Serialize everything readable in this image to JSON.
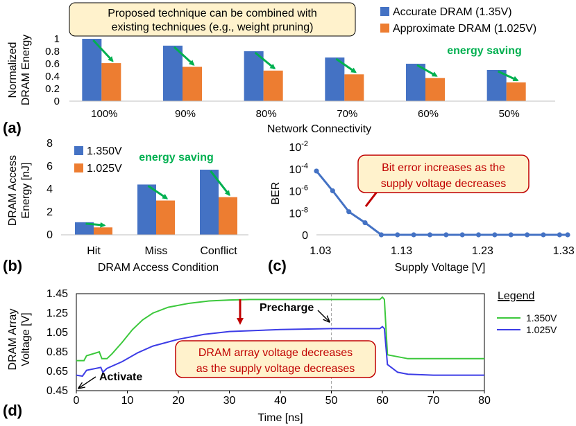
{
  "colors": {
    "blue": "#4472C4",
    "orange": "#ED7D31",
    "green_arrow": "#00B050",
    "green_text": "#00B050",
    "red_arrow": "#C00000",
    "callout_fill": "#FFF2CC",
    "callout_border": "#C00000",
    "line_green": "#3CC83C",
    "line_blue": "#3C3CE6"
  },
  "chart_data": [
    {
      "id": "a",
      "panel_label": "(a)",
      "type": "bar",
      "title_note_lines": [
        "Proposed technique can be combined with",
        "existing techniques (e.g., weight pruning)"
      ],
      "ylabel_lines": [
        "Normalized",
        "DRAM Energy"
      ],
      "xlabel": "Network Connectivity",
      "ylim": [
        0,
        1
      ],
      "yticks": [
        "0",
        "0.2",
        "0.4",
        "0.6",
        "0.8",
        "1"
      ],
      "categories": [
        "100%",
        "90%",
        "80%",
        "70%",
        "60%",
        "50%"
      ],
      "series": [
        {
          "name": "Accurate DRAM (1.35V)",
          "values": [
            1.0,
            0.89,
            0.8,
            0.7,
            0.6,
            0.5
          ]
        },
        {
          "name": "Approximate DRAM (1.025V)",
          "values": [
            0.61,
            0.55,
            0.49,
            0.43,
            0.37,
            0.3
          ]
        }
      ],
      "annotation": "energy saving"
    },
    {
      "id": "b",
      "panel_label": "(b)",
      "type": "bar",
      "ylabel_lines": [
        "DRAM Access",
        "Energy [nJ]"
      ],
      "xlabel": "DRAM Access Condition",
      "ylim": [
        0,
        8
      ],
      "yticks": [
        "0",
        "2",
        "4",
        "6",
        "8"
      ],
      "categories": [
        "Hit",
        "Miss",
        "Conflict"
      ],
      "series": [
        {
          "name": "1.350V",
          "values": [
            1.1,
            4.4,
            5.7
          ]
        },
        {
          "name": "1.025V",
          "values": [
            0.65,
            3.0,
            3.3
          ]
        }
      ],
      "annotation": "energy saving"
    },
    {
      "id": "c",
      "panel_label": "(c)",
      "type": "line",
      "ylabel": "BER",
      "xlabel": "Supply Voltage [V]",
      "xlim": [
        1.025,
        1.335
      ],
      "xticks": [
        "1.03",
        "1.13",
        "1.23",
        "1.33"
      ],
      "ylim_log10": [
        -10,
        -2
      ],
      "yticks": [
        {
          "base": "0",
          "exp": ""
        },
        {
          "base": "10",
          "exp": "-8"
        },
        {
          "base": "10",
          "exp": "-6"
        },
        {
          "base": "10",
          "exp": "-4"
        },
        {
          "base": "10",
          "exp": "-2"
        }
      ],
      "x": [
        1.025,
        1.045,
        1.065,
        1.085,
        1.105,
        1.125,
        1.145,
        1.165,
        1.185,
        1.205,
        1.225,
        1.245,
        1.265,
        1.285,
        1.305,
        1.325,
        1.335
      ],
      "y_log10": [
        -4.2,
        -6.0,
        -7.9,
        -8.9,
        -10,
        -10,
        -10,
        -10,
        -10,
        -10,
        -10,
        -10,
        -10,
        -10,
        -10,
        -10,
        -10
      ],
      "annotation_lines": [
        "Bit error increases as the",
        "supply voltage decreases"
      ]
    },
    {
      "id": "d",
      "panel_label": "(d)",
      "type": "line",
      "ylabel_lines": [
        "DRAM Array",
        "Voltage [V]"
      ],
      "xlabel": "Time [ns]",
      "xlim": [
        0,
        80
      ],
      "ylim": [
        0.45,
        1.45
      ],
      "xticks": [
        "0",
        "10",
        "20",
        "30",
        "40",
        "50",
        "60",
        "70",
        "80"
      ],
      "yticks": [
        "0.45",
        "0.65",
        "0.85",
        "1.05",
        "1.25",
        "1.45"
      ],
      "legend_title": "Legend",
      "series": [
        {
          "name": "1.350V",
          "x": [
            0,
            1.5,
            2,
            4.5,
            5,
            6,
            7,
            9,
            11,
            13,
            15,
            18,
            22,
            26,
            30,
            34,
            40,
            50,
            57,
            59.5,
            60,
            60.4,
            61,
            65,
            70,
            80
          ],
          "y": [
            0.76,
            0.76,
            0.81,
            0.85,
            0.78,
            0.78,
            0.83,
            0.95,
            1.08,
            1.18,
            1.25,
            1.31,
            1.35,
            1.375,
            1.385,
            1.39,
            1.39,
            1.39,
            1.39,
            1.39,
            1.415,
            1.39,
            0.82,
            0.78,
            0.78,
            0.78
          ]
        },
        {
          "name": "1.025V",
          "x": [
            0,
            1.2,
            2,
            4.8,
            5.2,
            6,
            9,
            12,
            15,
            20,
            25,
            30,
            40,
            50,
            57,
            59.5,
            60,
            60.4,
            61,
            63,
            65,
            70,
            80
          ],
          "y": [
            0.61,
            0.6,
            0.66,
            0.69,
            0.64,
            0.68,
            0.75,
            0.84,
            0.91,
            0.98,
            1.03,
            1.06,
            1.08,
            1.09,
            1.09,
            1.09,
            1.11,
            1.09,
            0.72,
            0.64,
            0.62,
            0.61,
            0.61
          ]
        }
      ],
      "annotations": {
        "precharge": "Precharge",
        "activate": "Activate",
        "callout_lines": [
          "DRAM array voltage decreases",
          "as the supply voltage decreases"
        ]
      }
    }
  ]
}
